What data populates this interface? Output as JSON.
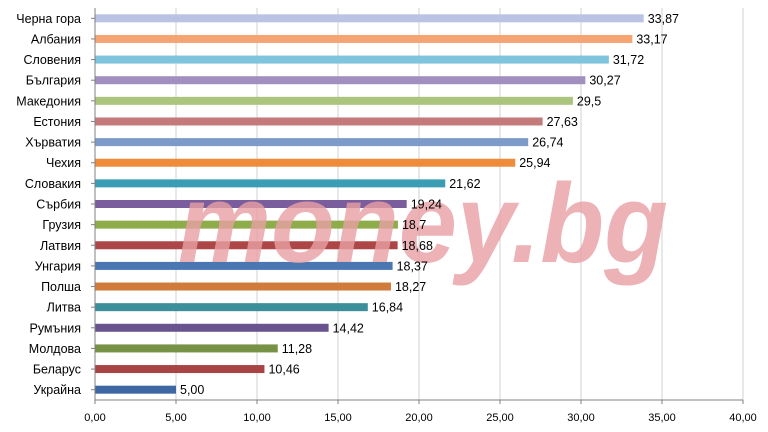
{
  "watermark": "money.bg",
  "chart_data": {
    "type": "bar",
    "orientation": "horizontal",
    "categories": [
      "Черна гора",
      "Албания",
      "Словения",
      "България",
      "Македония",
      "Естония",
      "Хърватия",
      "Чехия",
      "Словакия",
      "Сърбия",
      "Грузия",
      "Латвия",
      "Унгария",
      "Полша",
      "Литва",
      "Румъния",
      "Молдова",
      "Беларус",
      "Украйна"
    ],
    "values": [
      33.87,
      33.17,
      31.72,
      30.27,
      29.5,
      27.63,
      26.74,
      25.94,
      21.62,
      19.24,
      18.7,
      18.68,
      18.37,
      18.27,
      16.84,
      14.42,
      11.28,
      10.46,
      5.0
    ],
    "value_labels": [
      "33,87",
      "33,17",
      "31,72",
      "30,27",
      "29,5",
      "27,63",
      "26,74",
      "25,94",
      "21,62",
      "19,24",
      "18,7",
      "18,68",
      "18,37",
      "18,27",
      "16,84",
      "14,42",
      "11,28",
      "10,46",
      "5,00"
    ],
    "colors": [
      "#b9c3e3",
      "#f5a472",
      "#7ec4dc",
      "#a190bf",
      "#abc57f",
      "#c47a7a",
      "#7d9bc9",
      "#ee8c3c",
      "#3a9db4",
      "#7a5d9d",
      "#8fac4a",
      "#ad4646",
      "#4a76b2",
      "#d07b3c",
      "#3a8f9a",
      "#6a5490",
      "#779246",
      "#a84444",
      "#3f67a3"
    ],
    "xlim": [
      0,
      40
    ],
    "xticks": [
      "0,00",
      "5,00",
      "10,00",
      "15,00",
      "20,00",
      "25,00",
      "30,00",
      "35,00",
      "40,00"
    ],
    "grid": true,
    "title": "",
    "xlabel": "",
    "ylabel": ""
  }
}
